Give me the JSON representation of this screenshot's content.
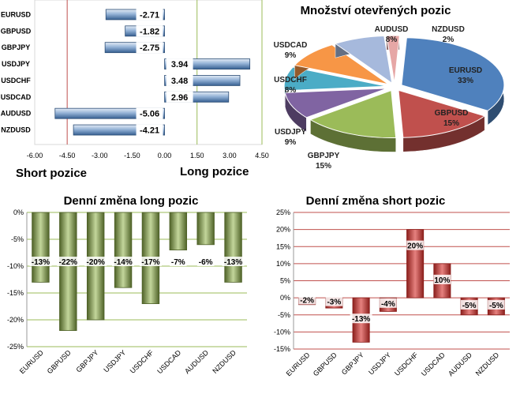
{
  "chart_data": [
    {
      "id": "net",
      "type": "bar",
      "orientation": "horizontal",
      "categories": [
        "EURUSD",
        "GBPUSD",
        "GBPJPY",
        "USDJPY",
        "USDCHF",
        "USDCAD",
        "AUDUSD",
        "NZDUSD"
      ],
      "values": [
        -2.71,
        -1.82,
        -2.75,
        3.94,
        3.48,
        2.96,
        -5.06,
        -4.21
      ],
      "value_labels": [
        "-2.71",
        "-1.82",
        "-2.75",
        "3.94",
        "3.48",
        "2.96",
        "-5.06",
        "-4.21"
      ],
      "xlim": [
        -6.0,
        4.5
      ],
      "xticks": [
        "-6.00",
        "-4.50",
        "-3.00",
        "-1.50",
        "0.00",
        "1.50",
        "3.00",
        "4.50"
      ],
      "left_label": "Short pozice",
      "right_label": "Long pozice",
      "colors": {
        "bar": "#4f81bd",
        "bar_light": "#dbe6f3"
      }
    },
    {
      "id": "pie",
      "type": "pie",
      "title": "Množství otevřených pozic",
      "slices": [
        {
          "name": "EURUSD",
          "value": 33,
          "label": "33%",
          "color": "#4f81bd"
        },
        {
          "name": "GBPUSD",
          "value": 15,
          "label": "15%",
          "color": "#c0504d"
        },
        {
          "name": "GBPJPY",
          "value": 15,
          "label": "15%",
          "color": "#9bbb59"
        },
        {
          "name": "USDJPY",
          "value": 9,
          "label": "9%",
          "color": "#8064a2"
        },
        {
          "name": "USDCHF",
          "value": 8,
          "label": "8%",
          "color": "#4bacc6"
        },
        {
          "name": "USDCAD",
          "value": 9,
          "label": "9%",
          "color": "#f79646"
        },
        {
          "name": "AUDUSD",
          "value": 8,
          "label": "8%",
          "color": "#a6b9dc"
        },
        {
          "name": "NZDUSD",
          "value": 2,
          "label": "2%",
          "color": "#e6a7a6"
        }
      ]
    },
    {
      "id": "long",
      "type": "bar",
      "title": "Denní změna long pozic",
      "categories": [
        "EURUSD",
        "GBPUSD",
        "GBPJPY",
        "USDJPY",
        "USDCHF",
        "USDCAD",
        "AUDUSD",
        "NZDUSD"
      ],
      "values": [
        -13,
        -22,
        -20,
        -14,
        -17,
        -7,
        -6,
        -13
      ],
      "value_labels": [
        "-13%",
        "-22%",
        "-20%",
        "-14%",
        "-17%",
        "-7%",
        "-6%",
        "-13%"
      ],
      "ylim": [
        -25,
        0
      ],
      "yticks": [
        "0%",
        "-5%",
        "-10%",
        "-15%",
        "-20%",
        "-25%"
      ],
      "colors": {
        "bar": "#76923c",
        "bar_light": "#d6e3bc"
      }
    },
    {
      "id": "short",
      "type": "bar",
      "title": "Denní změna short pozic",
      "categories": [
        "EURUSD",
        "GBPUSD",
        "GBPJPY",
        "USDJPY",
        "USDCHF",
        "USDCAD",
        "AUDUSD",
        "NZDUSD"
      ],
      "values": [
        -2,
        -3,
        -13,
        -4,
        20,
        10,
        -5,
        -5
      ],
      "value_labels": [
        "-2%",
        "-3%",
        "-13%",
        "-4%",
        "20%",
        "10%",
        "-5%",
        "-5%"
      ],
      "ylim": [
        -15,
        25
      ],
      "yticks": [
        "25%",
        "20%",
        "15%",
        "10%",
        "5%",
        "0%",
        "-5%",
        "-10%",
        "-15%"
      ],
      "colors": {
        "bar": "#c0302d",
        "bar_light": "#f2c9c8"
      }
    }
  ]
}
